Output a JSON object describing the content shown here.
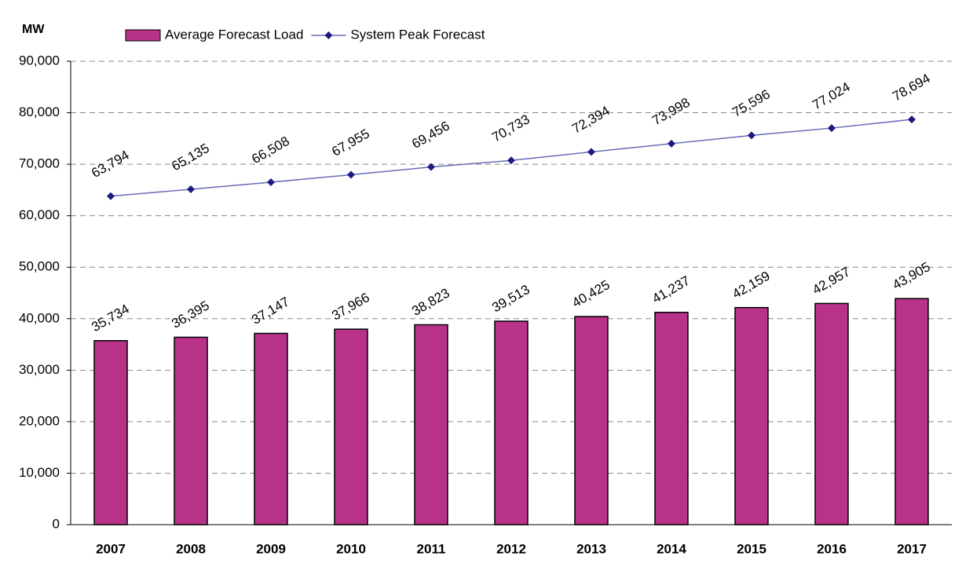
{
  "chart_data": {
    "type": "combo",
    "y_label": "MW",
    "categories": [
      "2007",
      "2008",
      "2009",
      "2010",
      "2011",
      "2012",
      "2013",
      "2014",
      "2015",
      "2016",
      "2017"
    ],
    "series": [
      {
        "name": "Average Forecast Load",
        "type": "bar",
        "color": "#b8328a",
        "values": [
          35734,
          36395,
          37147,
          37966,
          38823,
          39513,
          40425,
          41237,
          42159,
          42957,
          43905
        ],
        "value_labels": [
          "35,734",
          "36,395",
          "37,147",
          "37,966",
          "38,823",
          "39,513",
          "40,425",
          "41,237",
          "42,159",
          "42,957",
          "43,905"
        ]
      },
      {
        "name": "System Peak Forecast",
        "type": "line",
        "color": "#1a1a80",
        "values": [
          63794,
          65135,
          66508,
          67955,
          69456,
          70733,
          72394,
          73998,
          75596,
          77024,
          78694
        ],
        "value_labels": [
          "63,794",
          "65,135",
          "66,508",
          "67,955",
          "69,456",
          "70,733",
          "72,394",
          "73,998",
          "75,596",
          "77,024",
          "78,694"
        ]
      }
    ],
    "ylim": [
      0,
      90000
    ],
    "yticks": [
      0,
      {
        "value": 10000,
        "label": "10,000"
      },
      {
        "value": 20000,
        "label": "20,000"
      },
      {
        "value": 30000,
        "label": "30,000"
      },
      {
        "value": 40000,
        "label": "40,000"
      },
      {
        "value": 50000,
        "label": "50,000"
      },
      {
        "value": 60000,
        "label": "60,000"
      },
      {
        "value": 70000,
        "label": "70,000"
      },
      {
        "value": 80000,
        "label": "80,000"
      },
      {
        "value": 90000,
        "label": "90,000"
      }
    ],
    "grid": true,
    "legend": "top-left"
  }
}
